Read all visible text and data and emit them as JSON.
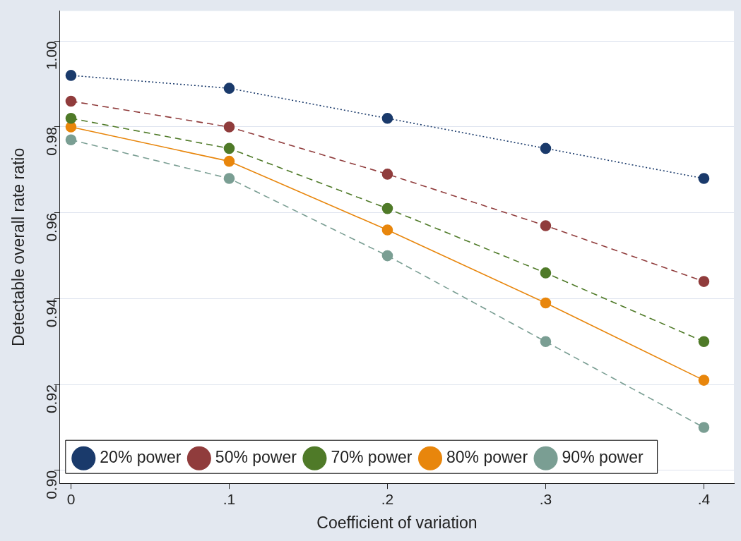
{
  "chart_data": {
    "type": "line",
    "xlabel": "Coefficient of variation",
    "ylabel": "Detectable overall rate ratio",
    "x": [
      0,
      0.1,
      0.2,
      0.3,
      0.4
    ],
    "xlim": [
      -0.007,
      0.419
    ],
    "xticks": [
      0,
      {
        "value": 0.1,
        "label": ".1"
      },
      {
        "value": 0.2,
        "label": ".2"
      },
      {
        "value": 0.3,
        "label": ".3"
      },
      {
        "value": 0.4,
        "label": ".4"
      }
    ],
    "ylim": [
      0.897,
      1.007
    ],
    "yticks": [
      {
        "value": 0.9,
        "label": "0.90"
      },
      0.92,
      0.94,
      0.96,
      0.98,
      {
        "value": 1,
        "label": "1.00"
      }
    ],
    "grid": "y",
    "legend": "bottom left",
    "marker": "circle",
    "series": [
      {
        "name": "20% power",
        "color": "#1a3a6b",
        "line_style": "dotted",
        "values": [
          0.992,
          0.989,
          0.982,
          0.975,
          0.968
        ]
      },
      {
        "name": "50% power",
        "color": "#903c3c",
        "line_style": "dashed",
        "values": [
          0.986,
          0.98,
          0.969,
          0.957,
          0.944
        ]
      },
      {
        "name": "70% power",
        "color": "#4f7a28",
        "line_style": "dashed",
        "values": [
          0.982,
          0.975,
          0.961,
          0.946,
          0.93
        ]
      },
      {
        "name": "80% power",
        "color": "#e8860c",
        "line_style": "solid",
        "values": [
          0.98,
          0.972,
          0.956,
          0.939,
          0.921
        ]
      },
      {
        "name": "90% power",
        "color": "#7a9e93",
        "line_style": "dashed",
        "values": [
          0.977,
          0.968,
          0.95,
          0.93,
          0.91
        ]
      }
    ]
  }
}
